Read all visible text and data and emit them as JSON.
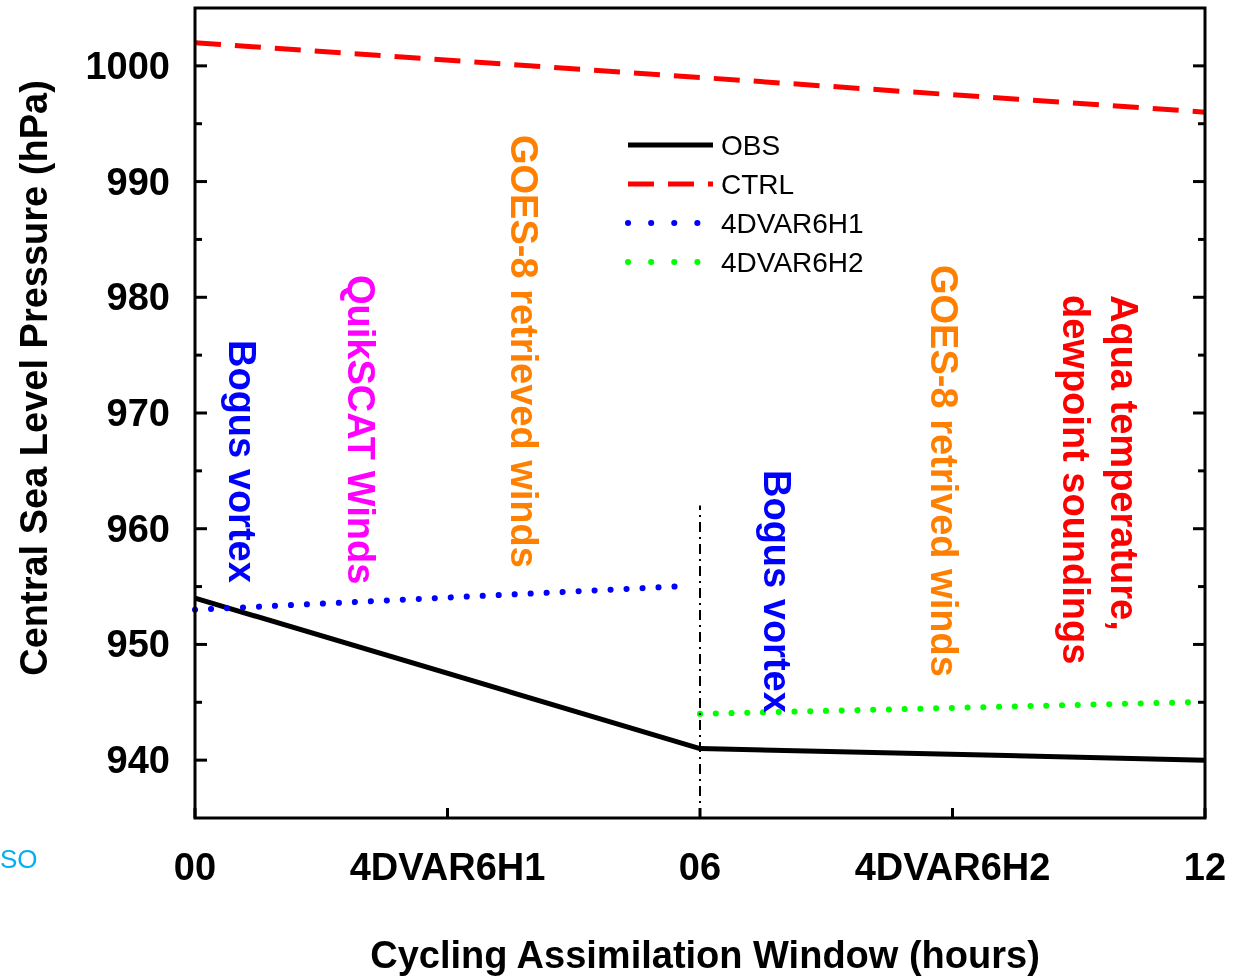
{
  "chart_data": {
    "type": "line",
    "xlabel": "Cycling Assimilation Window (hours)",
    "ylabel": "Central Sea Level Pressure (hPa)",
    "xlim": [
      0,
      12
    ],
    "xticks": [
      {
        "value": 0,
        "label": "00"
      },
      {
        "value": 3,
        "label": "4DVAR6H1"
      },
      {
        "value": 6,
        "label": "06"
      },
      {
        "value": 9,
        "label": "4DVAR6H2"
      },
      {
        "value": 12,
        "label": "12"
      }
    ],
    "ylim": [
      935,
      1005
    ],
    "yticks": [
      940,
      {
        "value": 945,
        "label": null
      },
      950,
      {
        "value": 955,
        "label": null
      },
      960,
      {
        "value": 965,
        "label": null
      },
      970,
      {
        "value": 975,
        "label": null
      },
      980,
      {
        "value": 985,
        "label": null
      },
      990,
      {
        "value": 995,
        "label": null
      },
      1000
    ],
    "legend": "top",
    "grid": false,
    "series": [
      {
        "name": "OBS",
        "color": "#000000",
        "line_style": "solid",
        "x": [
          0,
          6,
          12
        ],
        "values": [
          954,
          941,
          940
        ]
      },
      {
        "name": "CTRL",
        "color": "#ff0000",
        "line_style": "dashed",
        "x": [
          0,
          12
        ],
        "values": [
          1002,
          996
        ]
      },
      {
        "name": "4DVAR6H1",
        "color": "#0000ff",
        "line_style": "dotted",
        "x": [
          0,
          5.7
        ],
        "values": [
          953,
          955
        ]
      },
      {
        "name": "4DVAR6H2",
        "color": "#00ff00",
        "line_style": "dotted",
        "x": [
          6,
          11.8
        ],
        "values": [
          944,
          945
        ]
      },
      {
        "color": "#000000",
        "line_style": "dashed",
        "x": [
          6,
          6
        ],
        "values": [
          935,
          962
        ]
      }
    ],
    "annotations": [
      "Bogus vortex",
      "QuikSCAT Winds",
      "GOES-8 retrieved winds",
      "Bogus vortex",
      "GOES-8 retrived winds",
      "Aqua temperature,\ndewpoint soundings",
      "SO"
    ]
  }
}
